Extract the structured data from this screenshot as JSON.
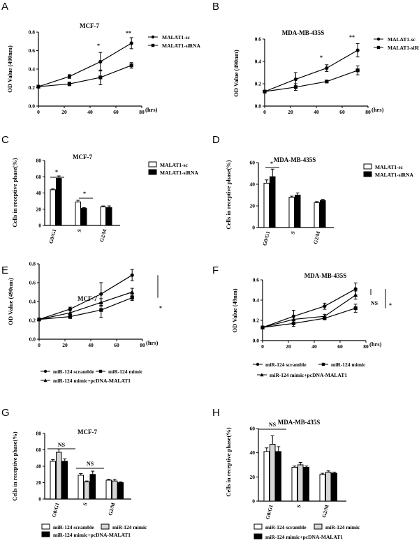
{
  "panels": {
    "A": {
      "letter": "A"
    },
    "B": {
      "letter": "B"
    },
    "C": {
      "letter": "C"
    },
    "D": {
      "letter": "D"
    },
    "E": {
      "letter": "E"
    },
    "F": {
      "letter": "F"
    },
    "G": {
      "letter": "G"
    },
    "H": {
      "letter": "H"
    }
  },
  "chart_data": [
    {
      "id": "A",
      "type": "line",
      "title": "MCF-7",
      "xlabel": "(hrs)",
      "ylabel": "OD Value (490nm)",
      "x": [
        0,
        24,
        48,
        72
      ],
      "xlim": [
        0,
        80
      ],
      "xticks": [
        0,
        20,
        40,
        60,
        80
      ],
      "ylim": [
        0,
        0.8
      ],
      "yticks": [
        0.0,
        0.2,
        0.4,
        0.6,
        0.8
      ],
      "yticklabels": [
        "0.0",
        "0.2",
        "0.4",
        "0.6",
        "0.8"
      ],
      "series": [
        {
          "name": "MALAT1-sc",
          "marker": "circle",
          "values": [
            0.21,
            0.32,
            0.48,
            0.68
          ],
          "errors": [
            0.01,
            0.02,
            0.1,
            0.06
          ]
        },
        {
          "name": "MALAT1-siRNA",
          "marker": "square",
          "values": [
            0.21,
            0.24,
            0.31,
            0.44
          ],
          "errors": [
            0.01,
            0.02,
            0.08,
            0.03
          ]
        }
      ],
      "annotations": [
        "*",
        "**"
      ]
    },
    {
      "id": "B",
      "type": "line",
      "title": "MDA-MB-435S",
      "xlabel": "(hrs)",
      "ylabel": "OD Value (490nm)",
      "x": [
        0,
        24,
        48,
        72
      ],
      "xlim": [
        0,
        80
      ],
      "xticks": [
        0,
        20,
        40,
        60,
        80
      ],
      "ylim": [
        0,
        0.6
      ],
      "yticks": [
        0.0,
        0.2,
        0.4,
        0.6
      ],
      "yticklabels": [
        "0.0",
        "0.2",
        "0.4",
        "0.6"
      ],
      "series": [
        {
          "name": "MALAT1-sc",
          "marker": "circle",
          "values": [
            0.13,
            0.24,
            0.34,
            0.5
          ],
          "errors": [
            0.01,
            0.06,
            0.03,
            0.06
          ]
        },
        {
          "name": "MALAT1-siRNA",
          "marker": "square",
          "values": [
            0.13,
            0.17,
            0.22,
            0.32
          ],
          "errors": [
            0.01,
            0.03,
            0.01,
            0.04
          ]
        }
      ],
      "annotations": [
        "*",
        "**"
      ]
    },
    {
      "id": "C",
      "type": "bar",
      "title": "MCF-7",
      "ylabel": "Cells in receptive phase(%)",
      "categories": [
        "G0/G1",
        "S",
        "G2/M"
      ],
      "ylim": [
        0,
        80
      ],
      "yticks": [
        0,
        20,
        40,
        60,
        80
      ],
      "yticklabels": [
        "0",
        "20",
        "40",
        "60",
        "80"
      ],
      "series": [
        {
          "name": "MALAT1-sc",
          "fill": "white",
          "values": [
            44,
            29,
            23
          ],
          "errors": [
            1,
            2,
            1
          ]
        },
        {
          "name": "MALAT1-siRNA",
          "fill": "black",
          "values": [
            58,
            21,
            22
          ],
          "errors": [
            3,
            1,
            2
          ]
        }
      ],
      "annotations": [
        "*",
        "*"
      ]
    },
    {
      "id": "D",
      "type": "bar",
      "title": "MDA-MB-435S",
      "ylabel": "Cells in receptive phase(%)",
      "categories": [
        "G0/G1",
        "S",
        "G2/M"
      ],
      "ylim": [
        0,
        60
      ],
      "yticks": [
        0,
        20,
        40,
        60
      ],
      "yticklabels": [
        "0",
        "20",
        "40",
        "60"
      ],
      "series": [
        {
          "name": "MALAT1-sc",
          "fill": "white",
          "values": [
            41,
            28,
            23
          ],
          "errors": [
            3,
            1,
            1
          ]
        },
        {
          "name": "MALAT1-siRNA",
          "fill": "black",
          "values": [
            47,
            30,
            25
          ],
          "errors": [
            7,
            2,
            1
          ]
        }
      ],
      "annotations": [
        "*"
      ]
    },
    {
      "id": "E",
      "type": "line",
      "title": "MCF-7",
      "xlabel": "(hrs)",
      "ylabel": "OD Value (490nm)",
      "x": [
        0,
        24,
        48,
        72
      ],
      "xlim": [
        0,
        80
      ],
      "xticks": [
        0,
        20,
        40,
        60,
        80
      ],
      "ylim": [
        0,
        0.8
      ],
      "yticks": [
        0.0,
        0.2,
        0.4,
        0.6,
        0.8
      ],
      "yticklabels": [
        "0.0",
        "0.2",
        "0.4",
        "0.6",
        "0.8"
      ],
      "series": [
        {
          "name": "miR-124 scramble",
          "marker": "circle",
          "values": [
            0.21,
            0.32,
            0.48,
            0.68
          ],
          "errors": [
            0.01,
            0.02,
            0.12,
            0.06
          ]
        },
        {
          "name": "miR-124 mimic",
          "marker": "square",
          "values": [
            0.21,
            0.24,
            0.31,
            0.44
          ],
          "errors": [
            0.01,
            0.02,
            0.08,
            0.03
          ]
        },
        {
          "name": "miR-124 mimic+pcDNA-MALAT1",
          "marker": "triangle",
          "values": [
            0.21,
            0.28,
            0.39,
            0.5
          ],
          "errors": [
            0.01,
            0.02,
            0.04,
            0.04
          ]
        }
      ],
      "annotations": [
        "*"
      ]
    },
    {
      "id": "F",
      "type": "line",
      "title": "MDA-MB-435S",
      "xlabel": "(hrs)",
      "ylabel": "OD Value (49nm)",
      "x": [
        0,
        24,
        48,
        72
      ],
      "xlim": [
        0,
        80
      ],
      "xticks": [
        0,
        20,
        40,
        60,
        80
      ],
      "ylim": [
        0,
        0.6
      ],
      "yticks": [
        0.0,
        0.2,
        0.4,
        0.6
      ],
      "yticklabels": [
        "0.0",
        "0.2",
        "0.4",
        "0.6"
      ],
      "series": [
        {
          "name": "miR-124 scramble",
          "marker": "circle",
          "values": [
            0.13,
            0.24,
            0.34,
            0.51
          ],
          "errors": [
            0.01,
            0.06,
            0.03,
            0.06
          ]
        },
        {
          "name": "miR-124 mimic",
          "marker": "square",
          "values": [
            0.13,
            0.17,
            0.22,
            0.32
          ],
          "errors": [
            0.01,
            0.03,
            0.01,
            0.04
          ]
        },
        {
          "name": "miR-124 mimic+pcDNA-MALAT1",
          "marker": "triangle",
          "values": [
            0.13,
            0.21,
            0.24,
            0.45
          ],
          "errors": [
            0.01,
            0.03,
            0.02,
            0.04
          ]
        }
      ],
      "annotations": [
        "NS",
        "*"
      ]
    },
    {
      "id": "G",
      "type": "bar",
      "title": "MCF-7",
      "ylabel": "Cells in receptive phase(%)",
      "categories": [
        "G0/G1",
        "S",
        "G2/M"
      ],
      "ylim": [
        0,
        80
      ],
      "yticks": [
        0,
        20,
        40,
        60,
        80
      ],
      "yticklabels": [
        "0",
        "20",
        "40",
        "60",
        "80"
      ],
      "series": [
        {
          "name": "miR-124 scramble",
          "fill": "white",
          "values": [
            46,
            29,
            23
          ],
          "errors": [
            2,
            2,
            1
          ]
        },
        {
          "name": "miR-124 mimic",
          "fill": "lightgray",
          "values": [
            57,
            21,
            22
          ],
          "errors": [
            4,
            1,
            2
          ]
        },
        {
          "name": "miR-124 mimic+pcDNA-MALAT1",
          "fill": "black",
          "values": [
            46,
            30,
            20
          ],
          "errors": [
            3,
            4,
            1
          ]
        }
      ],
      "annotations": [
        "NS",
        "NS"
      ]
    },
    {
      "id": "H",
      "type": "bar",
      "title": "MDA-MB-435S",
      "ylabel": "Cells in receptive phase(%)",
      "categories": [
        "G0/G1",
        "S",
        "G2/M"
      ],
      "ylim": [
        0,
        60
      ],
      "yticks": [
        0,
        20,
        40,
        60
      ],
      "yticklabels": [
        "0",
        "20",
        "40",
        "60"
      ],
      "series": [
        {
          "name": "miR-124 scramble",
          "fill": "white",
          "values": [
            41,
            28,
            22
          ],
          "errors": [
            3,
            1,
            1
          ]
        },
        {
          "name": "miR-124 mimic",
          "fill": "lightgray",
          "values": [
            47,
            30,
            24
          ],
          "errors": [
            7,
            2,
            1
          ]
        },
        {
          "name": "miR-124 mimic+pcDNA-MALAT1",
          "fill": "black",
          "values": [
            41,
            28,
            23
          ],
          "errors": [
            4,
            1,
            1
          ]
        }
      ],
      "annotations": [
        "NS"
      ]
    }
  ]
}
